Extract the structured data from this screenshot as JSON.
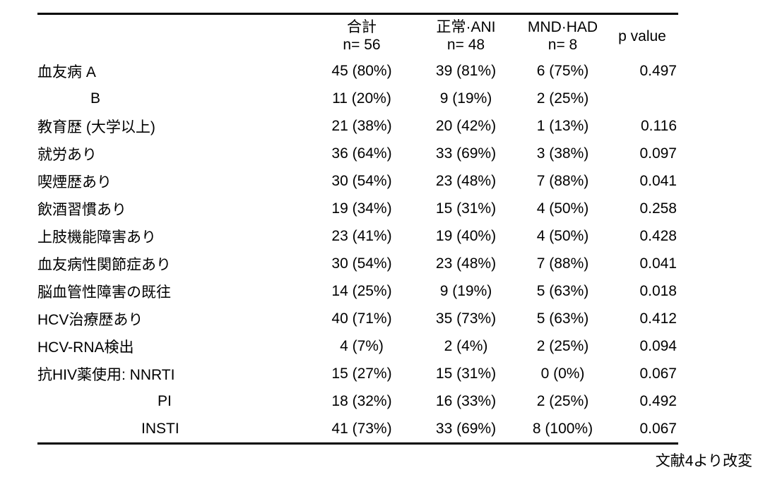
{
  "table": {
    "header": {
      "col_total": {
        "line1": "合計",
        "line2": "n= 56"
      },
      "col_normal_ani": {
        "line1": "正常·ANI",
        "line2": "n= 48"
      },
      "col_mnd_had": {
        "line1": "MND·HAD",
        "line2": "n= 8"
      },
      "col_p_value": "p value"
    },
    "rows": [
      {
        "label": "血友病 A",
        "indent": "",
        "total": "45 (80%)",
        "normal_ani": "39 (81%)",
        "mnd_had": "6 (75%)",
        "p_value": "0.497"
      },
      {
        "label": "B",
        "indent": "b",
        "total": "11 (20%)",
        "normal_ani": "9 (19%)",
        "mnd_had": "2 (25%)",
        "p_value": ""
      },
      {
        "label": "教育歴 (大学以上)",
        "indent": "",
        "total": "21 (38%)",
        "normal_ani": "20 (42%)",
        "mnd_had": "1 (13%)",
        "p_value": "0.116"
      },
      {
        "label": "就労あり",
        "indent": "",
        "total": "36 (64%)",
        "normal_ani": "33 (69%)",
        "mnd_had": "3 (38%)",
        "p_value": "0.097"
      },
      {
        "label": "喫煙歴あり",
        "indent": "",
        "total": "30 (54%)",
        "normal_ani": "23 (48%)",
        "mnd_had": "7 (88%)",
        "p_value": "0.041"
      },
      {
        "label": "飲酒習慣あり",
        "indent": "",
        "total": "19 (34%)",
        "normal_ani": "15 (31%)",
        "mnd_had": "4 (50%)",
        "p_value": "0.258"
      },
      {
        "label": "上肢機能障害あり",
        "indent": "",
        "total": "23 (41%)",
        "normal_ani": "19 (40%)",
        "mnd_had": "4 (50%)",
        "p_value": "0.428"
      },
      {
        "label": "血友病性関節症あり",
        "indent": "",
        "total": "30 (54%)",
        "normal_ani": "23 (48%)",
        "mnd_had": "7 (88%)",
        "p_value": "0.041"
      },
      {
        "label": "脳血管性障害の既往",
        "indent": "",
        "total": "14 (25%)",
        "normal_ani": "9 (19%)",
        "mnd_had": "5 (63%)",
        "p_value": "0.018"
      },
      {
        "label": "HCV治療歴あり",
        "indent": "",
        "total": "40 (71%)",
        "normal_ani": "35 (73%)",
        "mnd_had": "5 (63%)",
        "p_value": "0.412"
      },
      {
        "label": "HCV-RNA検出",
        "indent": "",
        "total": "4 (7%)",
        "normal_ani": "2 (4%)",
        "mnd_had": "2 (25%)",
        "p_value": "0.094"
      },
      {
        "label": "抗HIV薬使用:  NNRTI",
        "indent": "",
        "total": "15 (27%)",
        "normal_ani": "15 (31%)",
        "mnd_had": "0 (0%)",
        "p_value": "0.067"
      },
      {
        "label": "PI",
        "indent": "pi",
        "total": "18 (32%)",
        "normal_ani": "16 (33%)",
        "mnd_had": "2 (25%)",
        "p_value": "0.492"
      },
      {
        "label": "INSTI",
        "indent": "insti",
        "total": "41 (73%)",
        "normal_ani": "33 (69%)",
        "mnd_had": "8 (100%)",
        "p_value": "0.067"
      }
    ]
  },
  "footnote": "文献4より改変",
  "colors": {
    "text": "#000000",
    "background": "#ffffff",
    "rule": "#000000"
  }
}
